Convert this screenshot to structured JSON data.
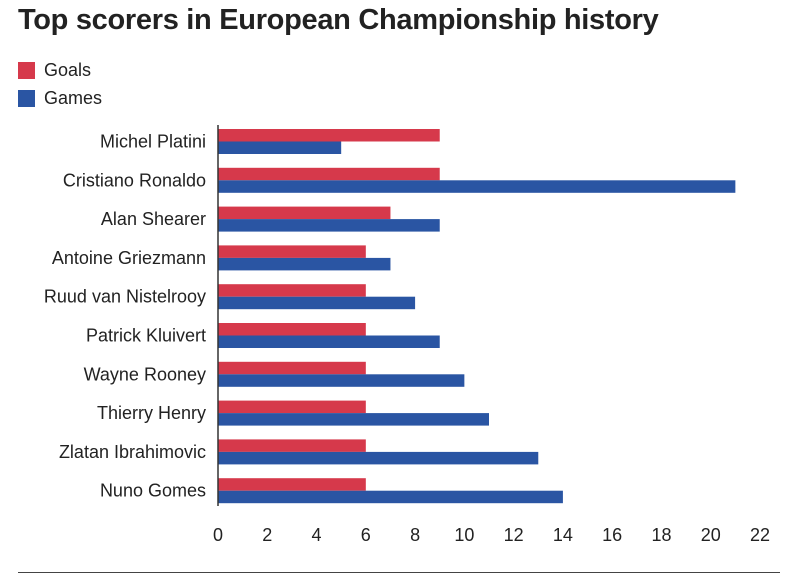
{
  "chart_data": {
    "type": "bar",
    "orientation": "horizontal",
    "title": "Top scorers in European Championship history",
    "categories": [
      "Michel Platini",
      "Cristiano Ronaldo",
      "Alan Shearer",
      "Antoine Griezmann",
      "Ruud van Nistelrooy",
      "Patrick Kluivert",
      "Wayne Rooney",
      "Thierry Henry",
      "Zlatan Ibrahimovic",
      "Nuno Gomes"
    ],
    "series": [
      {
        "name": "Goals",
        "color": "#d6394b",
        "values": [
          9,
          9,
          7,
          6,
          6,
          6,
          6,
          6,
          6,
          6
        ]
      },
      {
        "name": "Games",
        "color": "#2a55a3",
        "values": [
          5,
          21,
          9,
          7,
          8,
          9,
          10,
          11,
          13,
          14
        ]
      }
    ],
    "xlim": [
      0,
      22
    ],
    "xticks": [
      0,
      2,
      4,
      6,
      8,
      10,
      12,
      14,
      16,
      18,
      20,
      22
    ],
    "legend_position": "top-left",
    "grid": false
  }
}
